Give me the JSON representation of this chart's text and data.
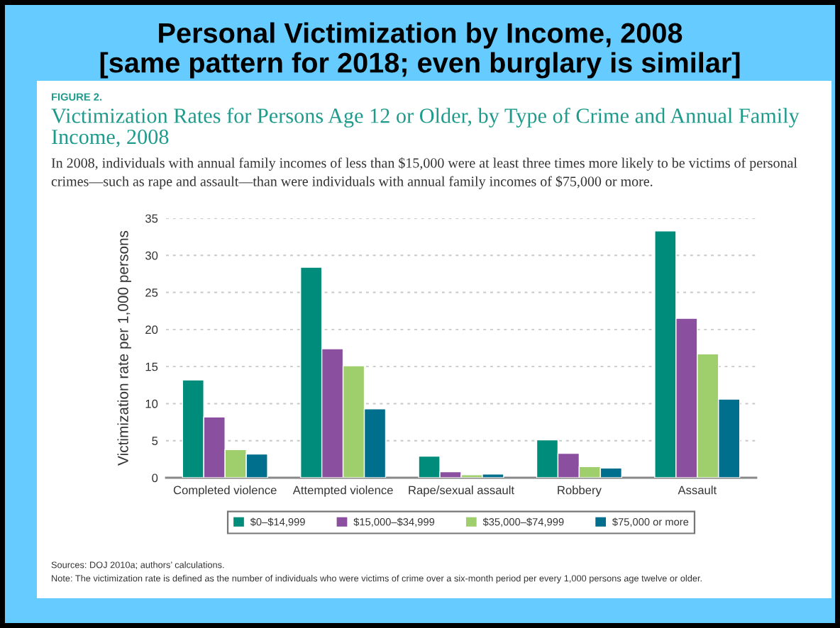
{
  "chart_data": {
    "type": "bar",
    "title": "Personal Victimization by Income, 2008",
    "subtitle": "Victimization Rates for Persons Age 12 or Older, by Type of Crime and Annual Family Income, 2008",
    "ylabel": "Victimization rate per 1,000 persons",
    "annotations": [
      "[same pattern for 2018; even burglary is similar]",
      "FIGURE 2.",
      "In 2008, individuals with annual family incomes of less than $15,000 were at least three times more likely to be victims of personal crimes—such as rape and assault—than were individuals with annual family incomes of $75,000 or more.",
      "Sources: DOJ 2010a; authors’ calculations.",
      "Note: The victimization rate is defined as the number of individuals who were victims of crime over a six-month period per every 1,000 persons age twelve or older."
    ],
    "categories": [
      "Completed violence",
      "Attempted violence",
      "Rape/sexual assault",
      "Robbery",
      "Assault"
    ],
    "series": [
      {
        "name": "$0–$14,999",
        "color": "#008c7a",
        "values": [
          13.2,
          28.4,
          2.9,
          5.1,
          33.3
        ]
      },
      {
        "name": "$15,000–$34,999",
        "color": "#8b4f9f",
        "values": [
          8.2,
          17.4,
          0.8,
          3.3,
          21.5
        ]
      },
      {
        "name": "$35,000–$74,999",
        "color": "#9fce6d",
        "values": [
          3.8,
          15.1,
          0.4,
          1.5,
          16.7
        ]
      },
      {
        "name": "$75,000 or more",
        "color": "#006f8e",
        "values": [
          3.2,
          9.3,
          0.5,
          1.3,
          10.6
        ]
      }
    ],
    "ylim": [
      0,
      35
    ],
    "yticks": [
      0,
      5,
      10,
      15,
      20,
      25,
      30,
      35
    ],
    "grid": "y",
    "legend": "bottom"
  }
}
